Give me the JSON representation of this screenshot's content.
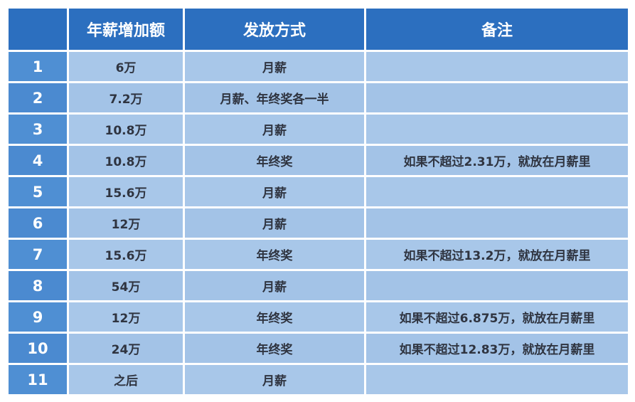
{
  "colors": {
    "header": "#2c6fbf",
    "index_column": "#4f8fd3",
    "cell": "#a8c7e9",
    "text": "#2f3440"
  },
  "table": {
    "headers": [
      "",
      "年薪增加额",
      "发放方式",
      "备注"
    ],
    "rows": [
      [
        "1",
        "6万",
        "月薪",
        ""
      ],
      [
        "2",
        "7.2万",
        "月薪、年终奖各一半",
        ""
      ],
      [
        "3",
        "10.8万",
        "月薪",
        ""
      ],
      [
        "4",
        "10.8万",
        "年终奖",
        "如果不超过2.31万，就放在月薪里"
      ],
      [
        "5",
        "15.6万",
        "月薪",
        ""
      ],
      [
        "6",
        "12万",
        "月薪",
        ""
      ],
      [
        "7",
        "15.6万",
        "年终奖",
        "如果不超过13.2万，就放在月薪里"
      ],
      [
        "8",
        "54万",
        "月薪",
        ""
      ],
      [
        "9",
        "12万",
        "年终奖",
        "如果不超过6.875万，就放在月薪里"
      ],
      [
        "10",
        "24万",
        "年终奖",
        "如果不超过12.83万，就放在月薪里"
      ],
      [
        "11",
        "之后",
        "月薪",
        ""
      ]
    ]
  }
}
